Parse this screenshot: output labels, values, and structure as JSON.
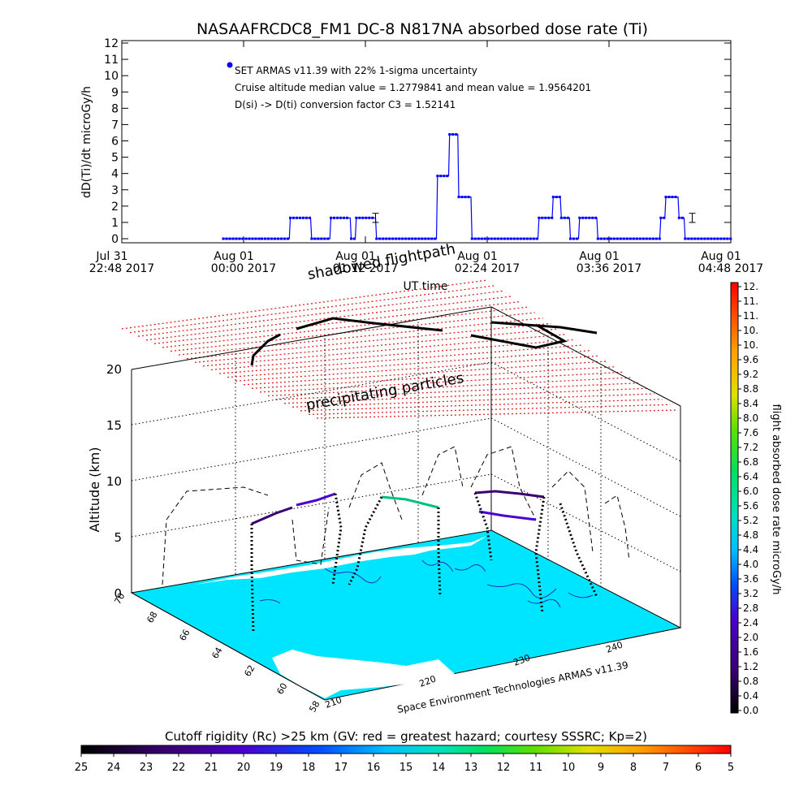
{
  "title": "NASAAFRCDC8_FM1 DC-8    N817NA absorbed dose rate (Ti)",
  "chart_data": [
    {
      "type": "line",
      "ylabel": "dD(Ti)/dt microGy/h",
      "xlabel": "UT time",
      "ylim": [
        0,
        12
      ],
      "yticks": [
        "0",
        "1",
        "2",
        "3",
        "4",
        "5",
        "6",
        "7",
        "8",
        "9",
        "10",
        "11",
        "12"
      ],
      "xticks": [
        {
          "date": "Jul 31",
          "time": "22:48 2017"
        },
        {
          "date": "Aug 01",
          "time": "00:00 2017"
        },
        {
          "date": "Aug 01",
          "time": "01:12 2017"
        },
        {
          "date": "Aug 01",
          "time": "02:24 2017"
        },
        {
          "date": "Aug 01",
          "time": "03:36 2017"
        },
        {
          "date": "Aug 01",
          "time": "04:48 2017"
        }
      ],
      "xrange_hours": [
        -1.2,
        4.8
      ],
      "annotations": [
        "SET ARMAS v11.39 with 22% 1-sigma uncertainty",
        "Cruise altitude median value = 1.2779841 and mean value = 1.9564201",
        "D(si) -> D(ti) conversion factor C3 = 1.52141"
      ],
      "series": [
        {
          "color": "#0000ff",
          "points": [
            [
              -0.2,
              0
            ],
            [
              0.18,
              0
            ],
            [
              0.45,
              0
            ],
            [
              0.46,
              1.28
            ],
            [
              0.66,
              1.28
            ],
            [
              0.67,
              0
            ],
            [
              0.85,
              0
            ],
            [
              0.86,
              1.28
            ],
            [
              1.05,
              1.28
            ],
            [
              1.06,
              0
            ],
            [
              1.1,
              0
            ],
            [
              1.11,
              1.28
            ],
            [
              1.3,
              1.28
            ],
            [
              1.31,
              0
            ],
            [
              1.9,
              0
            ],
            [
              1.91,
              3.85
            ],
            [
              2.02,
              3.85
            ],
            [
              2.03,
              6.4
            ],
            [
              2.11,
              6.4
            ],
            [
              2.12,
              2.56
            ],
            [
              2.24,
              2.56
            ],
            [
              2.25,
              0
            ],
            [
              2.9,
              0
            ],
            [
              2.91,
              1.28
            ],
            [
              3.04,
              1.28
            ],
            [
              3.05,
              2.56
            ],
            [
              3.12,
              2.56
            ],
            [
              3.13,
              1.28
            ],
            [
              3.21,
              1.28
            ],
            [
              3.22,
              0
            ],
            [
              3.3,
              0
            ],
            [
              3.31,
              1.28
            ],
            [
              3.48,
              1.28
            ],
            [
              3.49,
              0
            ],
            [
              4.1,
              0
            ],
            [
              4.11,
              1.28
            ],
            [
              4.15,
              1.28
            ],
            [
              4.16,
              2.56
            ],
            [
              4.28,
              2.56
            ],
            [
              4.29,
              1.28
            ],
            [
              4.34,
              1.28
            ],
            [
              4.35,
              0
            ],
            [
              4.8,
              0
            ]
          ],
          "errorbars": [
            [
              1.3,
              1.28,
              0.28
            ],
            [
              4.42,
              1.28,
              0.28
            ]
          ]
        }
      ]
    },
    {
      "type": "scatter",
      "ylabel": "Altitude (km)",
      "zticks": [
        "0",
        "5",
        "10",
        "15",
        "20"
      ],
      "lon_ticks": [
        "210",
        "220",
        "230",
        "240"
      ],
      "lat_ticks": [
        "58",
        "60",
        "62",
        "64",
        "66",
        "68",
        "70"
      ],
      "labels": [
        "precipitating particles",
        "shadowed flightpath"
      ],
      "credit": "Space Environment Technologies ARMAS v11.39"
    }
  ],
  "colorbar_right": {
    "label": "flight absorbed dose rate microGy/h",
    "ticks": [
      "0.0",
      "0.4",
      "0.8",
      "1.2",
      "1.6",
      "2.0",
      "2.4",
      "2.8",
      "3.2",
      "3.6",
      "4.0",
      "4.4",
      "4.8",
      "5.2",
      "5.6",
      "6.0",
      "6.4",
      "6.8",
      "7.2",
      "7.6",
      "8.0",
      "8.4",
      "8.8",
      "9.2",
      "9.6",
      "10.",
      "10.",
      "11.",
      "11.",
      "12."
    ]
  },
  "colorbar_bottom": {
    "label": "Cutoff rigidity (Rc) >25 km (GV: red = greatest hazard; courtesy SSSRC; Kp=2)",
    "ticks": [
      "25",
      "24",
      "23",
      "22",
      "21",
      "20",
      "19",
      "18",
      "17",
      "16",
      "15",
      "14",
      "13",
      "12",
      "11",
      "10",
      "9",
      "8",
      "7",
      "6",
      "5"
    ]
  },
  "colors": {
    "line": "#0000ff",
    "grid_red": "#e02020",
    "map_ocean": "#00e5ff",
    "map_land": "#ffffff",
    "map_coast": "#2030c0"
  }
}
